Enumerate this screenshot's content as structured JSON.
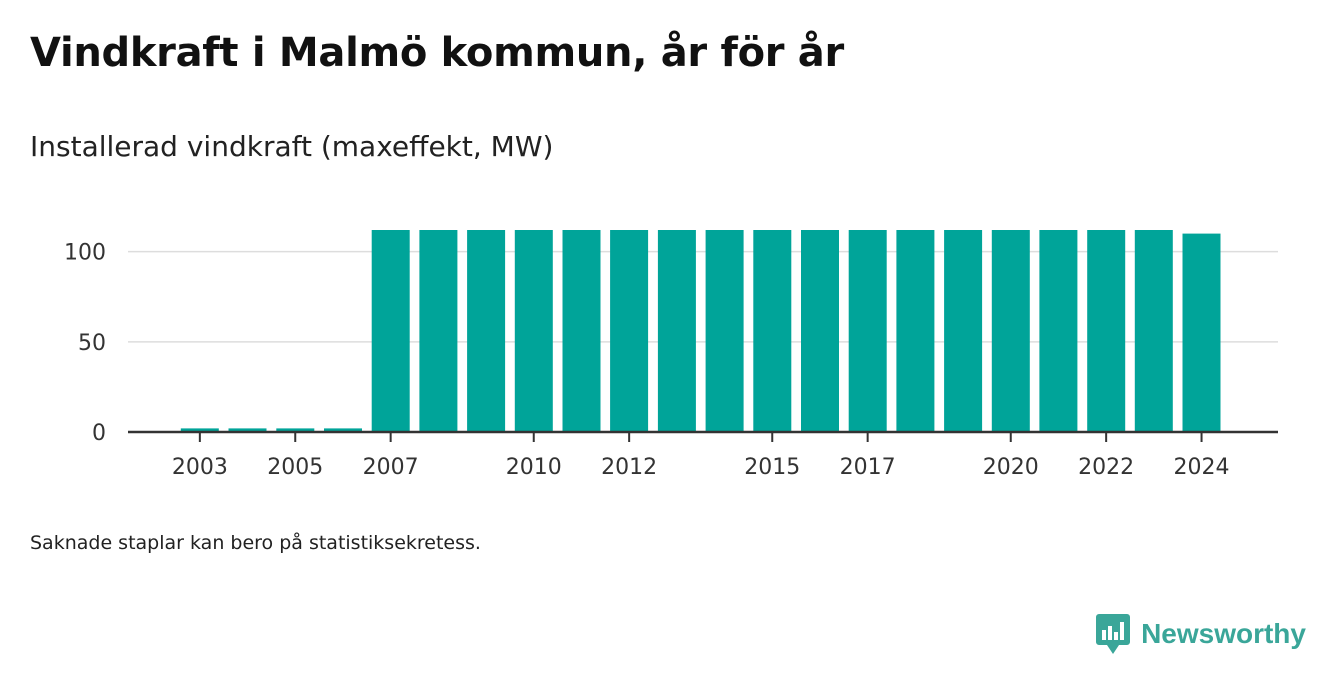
{
  "title": "Vindkraft i Malmö kommun, år för år",
  "subtitle": "Installerad vindkraft (maxeffekt, MW)",
  "note": "Saknade staplar kan bero på statistiksekretess.",
  "brand": {
    "name": "Newsworthy",
    "icon": "newsworthy-logo-icon"
  },
  "colors": {
    "bar": "#00a499",
    "grid": "#dddddd",
    "axis": "#333333",
    "brand": "#3aa699"
  },
  "chart_data": {
    "type": "bar",
    "title": "Vindkraft i Malmö kommun, år för år",
    "subtitle": "Installerad vindkraft (maxeffekt, MW)",
    "xlabel": "",
    "ylabel": "",
    "categories": [
      "2003",
      "2004",
      "2005",
      "2006",
      "2007",
      "2008",
      "2009",
      "2010",
      "2011",
      "2012",
      "2013",
      "2014",
      "2015",
      "2016",
      "2017",
      "2018",
      "2019",
      "2020",
      "2021",
      "2022",
      "2023",
      "2024"
    ],
    "values": [
      2,
      2,
      2,
      2,
      112,
      112,
      112,
      112,
      112,
      112,
      112,
      112,
      112,
      112,
      112,
      112,
      112,
      112,
      112,
      112,
      112,
      110
    ],
    "x_tick_labels": [
      "2003",
      "2005",
      "2007",
      "2010",
      "2012",
      "2015",
      "2017",
      "2020",
      "2022",
      "2024"
    ],
    "y_ticks": [
      0,
      50,
      100
    ],
    "ylim": [
      0,
      112
    ],
    "grid": true,
    "legend": "none"
  }
}
